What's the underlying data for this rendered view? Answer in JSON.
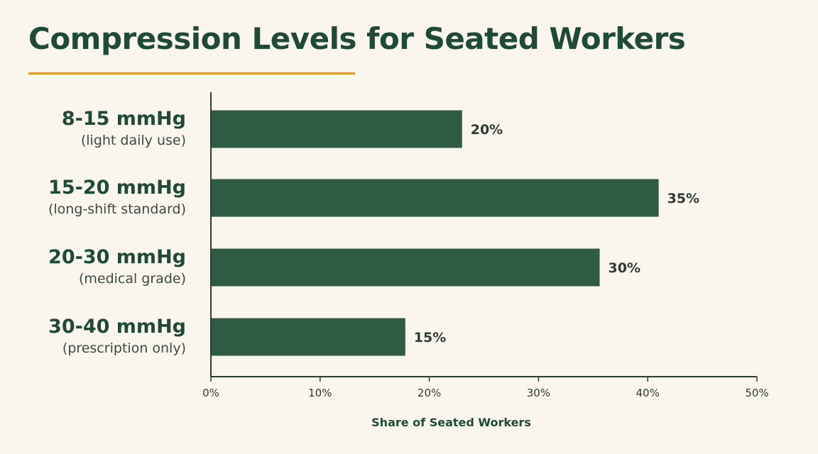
{
  "title": "Compression Levels for Seated Workers",
  "colors": {
    "bar": "#2f5a44",
    "title": "#1f4a37",
    "underline": "#e09a2c",
    "background": "#faf6ee",
    "axis": "#2f3b35"
  },
  "chart_data": {
    "type": "bar",
    "orientation": "horizontal",
    "categories": [
      {
        "name": "8-15 mmHg",
        "note": "(light daily use)"
      },
      {
        "name": "15-20 mmHg",
        "note": "(long-shift standard)"
      },
      {
        "name": "20-30 mmHg",
        "note": "(medical grade)"
      },
      {
        "name": "30-40 mmHg",
        "note": "(prescription only)"
      }
    ],
    "values": [
      23,
      41,
      35.6,
      17.8
    ],
    "value_labels": [
      "20%",
      "35%",
      "30%",
      "15%"
    ],
    "xlabel": "Share of Seated Workers",
    "ylabel": "",
    "xlim": [
      0,
      50
    ],
    "xticks": [
      0,
      10,
      20,
      30,
      40,
      50
    ],
    "xtick_labels": [
      "0%",
      "10%",
      "20%",
      "30%",
      "40%",
      "50%"
    ],
    "grid": false,
    "legend": "none"
  }
}
